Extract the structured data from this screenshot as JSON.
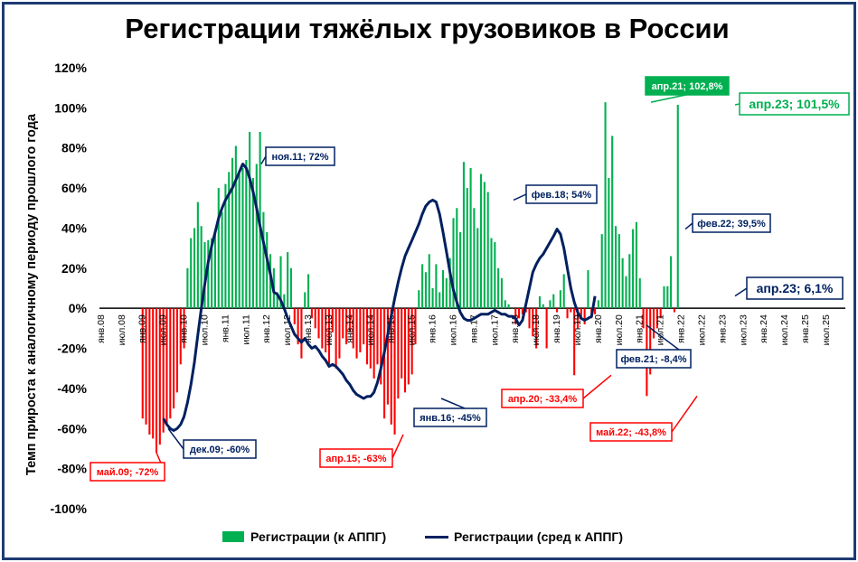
{
  "chart_data": {
    "type": "bar",
    "title": "Регистрации тяжёлых грузовиков в России",
    "ylabel": "Темп прироста к аналогичному периоду прошлого года",
    "ylim": [
      -100,
      120
    ],
    "y_ticks": [
      "120%",
      "100%",
      "80%",
      "60%",
      "40%",
      "20%",
      "0%",
      "-20%",
      "-40%",
      "-60%",
      "-80%",
      "-100%"
    ],
    "y_tick_values": [
      120,
      100,
      80,
      60,
      40,
      20,
      0,
      -20,
      -40,
      -60,
      -80,
      -100
    ],
    "x_ticks": [
      "янв.08",
      "июл.08",
      "янв.09",
      "июл.09",
      "янв.10",
      "июл.10",
      "янв.11",
      "июл.11",
      "янв.12",
      "июл.12",
      "янв.13",
      "июл.13",
      "янв.14",
      "июл.14",
      "янв.15",
      "июл.15",
      "янв.16",
      "июл.16",
      "янв.17",
      "июл.17",
      "янв.18",
      "июл.18",
      "янв.19",
      "июл.19",
      "янв.20",
      "июл.20",
      "янв.21",
      "июл.21",
      "янв.22",
      "июл.22",
      "янв.23",
      "июл.23",
      "янв.24",
      "июл.24",
      "янв.25",
      "июл.25"
    ],
    "legend_position": "bottom",
    "colors": {
      "positive": "#00b050",
      "negative": "#ff0000",
      "line": "#002060"
    },
    "series": [
      {
        "name": "Регистрации (к АППГ)",
        "type": "bar",
        "start": "янв.08",
        "values": [
          null,
          null,
          null,
          null,
          null,
          null,
          null,
          null,
          null,
          null,
          null,
          null,
          -55,
          -58,
          -63,
          -65,
          -72,
          -68,
          -62,
          -58,
          -55,
          -50,
          -42,
          -28,
          -20,
          20,
          35,
          40,
          53,
          41,
          33,
          34,
          35,
          38,
          60,
          48,
          62,
          68,
          75,
          81,
          67,
          70,
          74,
          88,
          65,
          72,
          88,
          48,
          38,
          27,
          20,
          8,
          26,
          7,
          28,
          20,
          -8,
          -18,
          -25,
          8,
          17,
          -5,
          -10,
          -15,
          -20,
          -22,
          -28,
          -12,
          -30,
          -25,
          -15,
          -18,
          -12,
          -20,
          -25,
          -22,
          -18,
          -28,
          -30,
          -35,
          -28,
          -38,
          -55,
          -48,
          -58,
          -63,
          -45,
          -35,
          -42,
          -38,
          -33,
          -18,
          9,
          22,
          18,
          27,
          10,
          22,
          8,
          19,
          15,
          25,
          45,
          50,
          38,
          73,
          60,
          70,
          50,
          40,
          67,
          63,
          58,
          35,
          33,
          20,
          15,
          4,
          2,
          0,
          -8,
          -5,
          -3,
          -2,
          -10,
          -14,
          -20,
          6,
          2,
          -20,
          4,
          7,
          -2,
          9,
          17,
          -5,
          -2,
          -33.4,
          -10,
          -5,
          -8,
          19,
          -5,
          -3,
          4,
          37,
          102.8,
          65,
          86,
          41,
          37,
          25,
          16,
          27,
          39.5,
          43,
          15,
          -10,
          -43.8,
          -33,
          -15,
          -10,
          -5,
          11,
          11,
          26,
          -2,
          101.5
        ]
      },
      {
        "name": "Регистрации (сред к АППГ)",
        "type": "line",
        "start": "июл.09",
        "values": [
          -55,
          -58,
          -60,
          -61,
          -60,
          -58,
          -54,
          -47,
          -38,
          -27,
          -13,
          0,
          12,
          23,
          31,
          38,
          45,
          50,
          54,
          57,
          60,
          64,
          68,
          72,
          70,
          65,
          58,
          50,
          41,
          33,
          25,
          17,
          8,
          7,
          4,
          0,
          -5,
          -9,
          -13,
          -15,
          -17,
          -15,
          -18,
          -20,
          -19,
          -21,
          -24,
          -26,
          -29,
          -28,
          -29,
          -31,
          -33,
          -36,
          -38,
          -41,
          -43,
          -44,
          -45,
          -44,
          -44,
          -42,
          -37,
          -30,
          -22,
          -13,
          -4,
          5,
          13,
          20,
          26,
          30,
          34,
          38,
          42,
          47,
          51,
          53,
          54,
          53,
          47,
          38,
          28,
          18,
          9,
          3,
          -2,
          -5,
          -6,
          -6,
          -5,
          -4,
          -3,
          -3,
          -3,
          -2,
          -1,
          -2,
          -3,
          -3,
          -4,
          -4,
          -5,
          -8.4,
          -6,
          2,
          10,
          18,
          22,
          25,
          27,
          30,
          33,
          36,
          39.5,
          37,
          30,
          20,
          10,
          3,
          -2,
          -5,
          -6,
          -5,
          -4,
          6.1
        ]
      }
    ],
    "annotations": [
      {
        "text": "май.09; -72%",
        "color": "#ff0000"
      },
      {
        "text": "дек.09; -60%",
        "color": "#002060"
      },
      {
        "text": "ноя.11; 72%",
        "color": "#002060"
      },
      {
        "text": "апр.15; -63%",
        "color": "#ff0000"
      },
      {
        "text": "янв.16; -45%",
        "color": "#002060"
      },
      {
        "text": "фев.18; 54%",
        "color": "#002060"
      },
      {
        "text": "апр.20; -33,4%",
        "color": "#ff0000"
      },
      {
        "text": "фев.21; -8,4%",
        "color": "#002060"
      },
      {
        "text": "апр.21; 102,8%",
        "color": "#00b050"
      },
      {
        "text": "фев.22; 39,5%",
        "color": "#002060"
      },
      {
        "text": "май.22; -43,8%",
        "color": "#ff0000"
      },
      {
        "text": "апр.23; 101,5%",
        "color": "#00b050"
      },
      {
        "text": "апр.23; 6,1%",
        "color": "#002060"
      }
    ]
  }
}
